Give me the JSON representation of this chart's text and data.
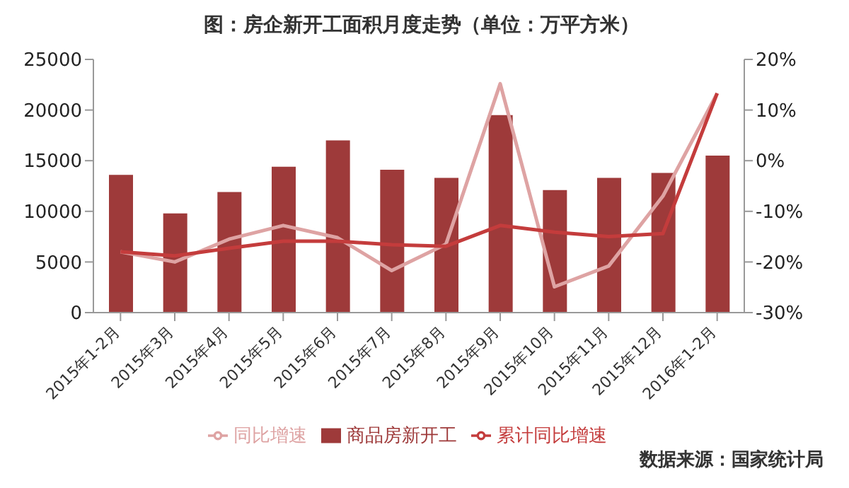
{
  "chart_data": {
    "type": "bar",
    "title": "图：房企新开工面积月度走势（单位：万平方米）",
    "categories": [
      "2015年1-2月",
      "2015年3月",
      "2015年4月",
      "2015年5月",
      "2015年6月",
      "2015年7月",
      "2015年8月",
      "2015年9月",
      "2015年10月",
      "2015年11月",
      "2015年12月",
      "2016年1-2月"
    ],
    "series": [
      {
        "name": "商品房新开工",
        "color": "#9e3a3a",
        "values": [
          13600,
          9800,
          11900,
          14400,
          17000,
          14100,
          13300,
          19500,
          12100,
          13300,
          13800,
          15500
        ]
      },
      {
        "name": "同比增速",
        "type": "line",
        "axis": "y2",
        "color": "#dea3a3",
        "values": [
          -18,
          -20,
          -15.5,
          -12.8,
          -15.2,
          -21.7,
          -16.5,
          15.2,
          -24.9,
          -20.8,
          -7,
          13.3
        ]
      },
      {
        "name": "累计同比增速",
        "type": "line",
        "axis": "y2",
        "color": "#c43c3c",
        "values": [
          -18,
          -18.8,
          -17.3,
          -15.9,
          -15.9,
          -16.6,
          -16.9,
          -12.8,
          -14.1,
          -15,
          -14.4,
          13.3
        ]
      }
    ],
    "ylim": [
      0,
      25000
    ],
    "yticks": [
      0,
      5000,
      10000,
      15000,
      20000,
      25000
    ],
    "y2lim": [
      -30,
      20
    ],
    "y2ticks": [
      {
        "value": -30,
        "label": "-30%"
      },
      {
        "value": -20,
        "label": "-20%"
      },
      {
        "value": -10,
        "label": "-10%"
      },
      {
        "value": 0,
        "label": "0%"
      },
      {
        "value": 10,
        "label": "10%"
      },
      {
        "value": 20,
        "label": "20%"
      }
    ],
    "grid": false,
    "legend": "bottom",
    "marker": "none",
    "annotations": [
      "数据来源：国家统计局"
    ]
  }
}
